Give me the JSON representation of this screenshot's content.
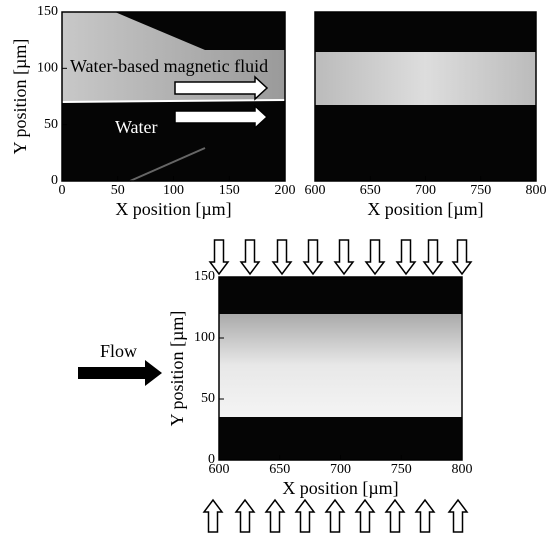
{
  "chart_data": [
    {
      "type": "image",
      "xlabel": "X position  [µm]",
      "ylabel": "Y position  [µm]",
      "xlim": [
        0,
        200
      ],
      "ylim": [
        0,
        150
      ],
      "xticks": [
        0,
        50,
        100,
        150,
        200
      ],
      "yticks": [
        0,
        50,
        100,
        150
      ],
      "annotations": [
        "Water-based magnetic fluid",
        "Water"
      ]
    },
    {
      "type": "image",
      "xlabel": "X position  [µm]",
      "xlim": [
        600,
        800
      ],
      "ylim": [
        0,
        150
      ],
      "xticks": [
        600,
        650,
        700,
        750,
        800
      ]
    },
    {
      "type": "image",
      "xlabel": "X position  [µm]",
      "ylabel": "Y position  [µm]",
      "xlim": [
        600,
        800
      ],
      "ylim": [
        0,
        150
      ],
      "xticks": [
        600,
        650,
        700,
        750,
        800
      ],
      "yticks": [
        0,
        50,
        100,
        150
      ],
      "annotations": [
        "Flow"
      ]
    }
  ]
}
